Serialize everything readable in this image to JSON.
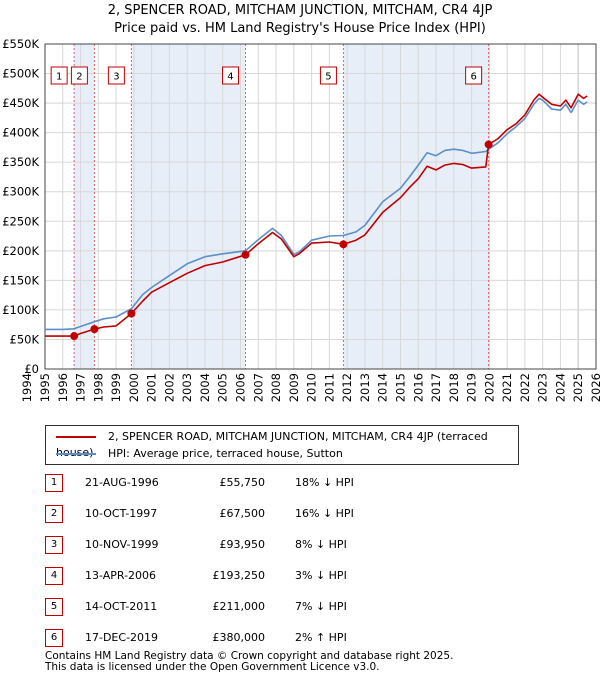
{
  "title_line1": "2, SPENCER ROAD, MITCHAM JUNCTION, MITCHAM, CR4 4JP",
  "title_line2": "Price paid vs. HM Land Registry's House Price Index (HPI)",
  "colors": {
    "property": "#c00000",
    "hpi": "#5b8fc9",
    "shade": "#e8eef8",
    "marker_line": "#e06060"
  },
  "chart_data": {
    "type": "line",
    "title": "2, SPENCER ROAD, MITCHAM JUNCTION, MITCHAM, CR4 4JP — Price paid vs. HM Land Registry's House Price Index (HPI)",
    "xlabel": "",
    "ylabel": "",
    "xlim": [
      1995,
      2026
    ],
    "ylim": [
      0,
      550000
    ],
    "y_ticks": [
      0,
      50000,
      100000,
      150000,
      200000,
      250000,
      300000,
      350000,
      400000,
      450000,
      500000,
      550000
    ],
    "y_tick_labels": [
      "£0",
      "£50K",
      "£100K",
      "£150K",
      "£200K",
      "£250K",
      "£300K",
      "£350K",
      "£400K",
      "£450K",
      "£500K",
      "£550K"
    ],
    "x_ticks": [
      1994,
      1995,
      1996,
      1997,
      1998,
      1999,
      2000,
      2001,
      2002,
      2003,
      2004,
      2005,
      2006,
      2007,
      2008,
      2009,
      2010,
      2011,
      2012,
      2013,
      2014,
      2015,
      2016,
      2017,
      2018,
      2019,
      2020,
      2021,
      2022,
      2023,
      2024,
      2025,
      2026
    ],
    "x_tick_labels": [
      "1994",
      "1995",
      "1996",
      "1997",
      "1998",
      "1999",
      "2000",
      "2001",
      "2002",
      "2003",
      "2004",
      "2005",
      "2006",
      "2007",
      "2008",
      "2009",
      "2010",
      "2011",
      "2012",
      "2013",
      "2014",
      "2015",
      "2016",
      "2017",
      "2018",
      "2019",
      "2020",
      "2021",
      "2022",
      "2023",
      "2024",
      "2025",
      "2026"
    ],
    "grid": true,
    "legend_position": "below",
    "series": [
      {
        "name": "2, SPENCER ROAD, MITCHAM JUNCTION, MITCHAM, CR4 4JP (terraced house)",
        "color": "#c00000",
        "x": [
          1995.0,
          1996.0,
          1996.64,
          1997.0,
          1997.78,
          1998.3,
          1999.0,
          1999.86,
          2000.5,
          2001.0,
          2002.0,
          2003.0,
          2004.0,
          2005.0,
          2006.28,
          2007.0,
          2007.8,
          2008.3,
          2009.0,
          2009.3,
          2010.0,
          2011.0,
          2011.79,
          2012.5,
          2013.0,
          2014.0,
          2015.0,
          2015.5,
          2016.0,
          2016.5,
          2017.0,
          2017.5,
          2018.0,
          2018.5,
          2019.0,
          2019.8,
          2019.96,
          2020.5,
          2021.0,
          2021.5,
          2022.0,
          2022.5,
          2022.8,
          2023.0,
          2023.5,
          2024.0,
          2024.3,
          2024.6,
          2025.0,
          2025.3,
          2025.5
        ],
        "y": [
          55750,
          55750,
          55750,
          60000,
          67500,
          71000,
          73000,
          93950,
          115000,
          130000,
          146000,
          162000,
          175000,
          181000,
          193250,
          212000,
          231000,
          220000,
          190000,
          195000,
          213000,
          215000,
          211000,
          218000,
          227000,
          265000,
          290000,
          307000,
          322000,
          343000,
          337000,
          345000,
          348000,
          346000,
          340000,
          342000,
          380000,
          390000,
          405000,
          415000,
          430000,
          455000,
          465000,
          460000,
          448000,
          445000,
          455000,
          442000,
          465000,
          458000,
          462000
        ]
      },
      {
        "name": "HPI: Average price, terraced house, Sutton",
        "color": "#5b8fc9",
        "x": [
          1995.0,
          1996.0,
          1996.64,
          1997.0,
          1997.78,
          1998.3,
          1999.0,
          1999.86,
          2000.5,
          2001.0,
          2002.0,
          2003.0,
          2004.0,
          2005.0,
          2006.28,
          2007.0,
          2007.8,
          2008.3,
          2009.0,
          2009.3,
          2010.0,
          2011.0,
          2011.79,
          2012.5,
          2013.0,
          2014.0,
          2015.0,
          2015.5,
          2016.0,
          2016.5,
          2017.0,
          2017.5,
          2018.0,
          2018.5,
          2019.0,
          2019.8,
          2019.96,
          2020.5,
          2021.0,
          2021.5,
          2022.0,
          2022.5,
          2022.8,
          2023.0,
          2023.5,
          2024.0,
          2024.3,
          2024.6,
          2025.0,
          2025.3,
          2025.5
        ],
        "y": [
          67000,
          67000,
          68000,
          72000,
          80000,
          85000,
          88000,
          102000,
          126000,
          138000,
          158000,
          178000,
          190000,
          195000,
          200000,
          219000,
          238000,
          226000,
          194000,
          198000,
          218000,
          225000,
          226000,
          232000,
          243000,
          283000,
          306000,
          325000,
          345000,
          366000,
          361000,
          370000,
          372000,
          370000,
          365000,
          368000,
          372000,
          383000,
          398000,
          410000,
          424000,
          448000,
          458000,
          455000,
          440000,
          438000,
          448000,
          434000,
          455000,
          448000,
          452000
        ]
      }
    ],
    "transactions": [
      {
        "num": "1",
        "x": 1996.64,
        "y": 55750
      },
      {
        "num": "2",
        "x": 1997.78,
        "y": 67500
      },
      {
        "num": "3",
        "x": 1999.86,
        "y": 93950
      },
      {
        "num": "4",
        "x": 2006.28,
        "y": 193250
      },
      {
        "num": "5",
        "x": 2011.79,
        "y": 211000
      },
      {
        "num": "6",
        "x": 2019.96,
        "y": 380000
      }
    ]
  },
  "legend": {
    "property_label": "2, SPENCER ROAD, MITCHAM JUNCTION, MITCHAM, CR4 4JP (terraced house)",
    "hpi_label": "HPI: Average price, terraced house, Sutton"
  },
  "table": [
    {
      "num": "1",
      "date": "21-AUG-1996",
      "price": "£55,750",
      "hpi": "18% ↓ HPI"
    },
    {
      "num": "2",
      "date": "10-OCT-1997",
      "price": "£67,500",
      "hpi": "16% ↓ HPI"
    },
    {
      "num": "3",
      "date": "10-NOV-1999",
      "price": "£93,950",
      "hpi": "8% ↓ HPI"
    },
    {
      "num": "4",
      "date": "13-APR-2006",
      "price": "£193,250",
      "hpi": "3% ↓ HPI"
    },
    {
      "num": "5",
      "date": "14-OCT-2011",
      "price": "£211,000",
      "hpi": "7% ↓ HPI"
    },
    {
      "num": "6",
      "date": "17-DEC-2019",
      "price": "£380,000",
      "hpi": "2% ↑ HPI"
    }
  ],
  "footer": {
    "line1": "Contains HM Land Registry data © Crown copyright and database right 2025.",
    "line2": "This data is licensed under the Open Government Licence v3.0."
  }
}
